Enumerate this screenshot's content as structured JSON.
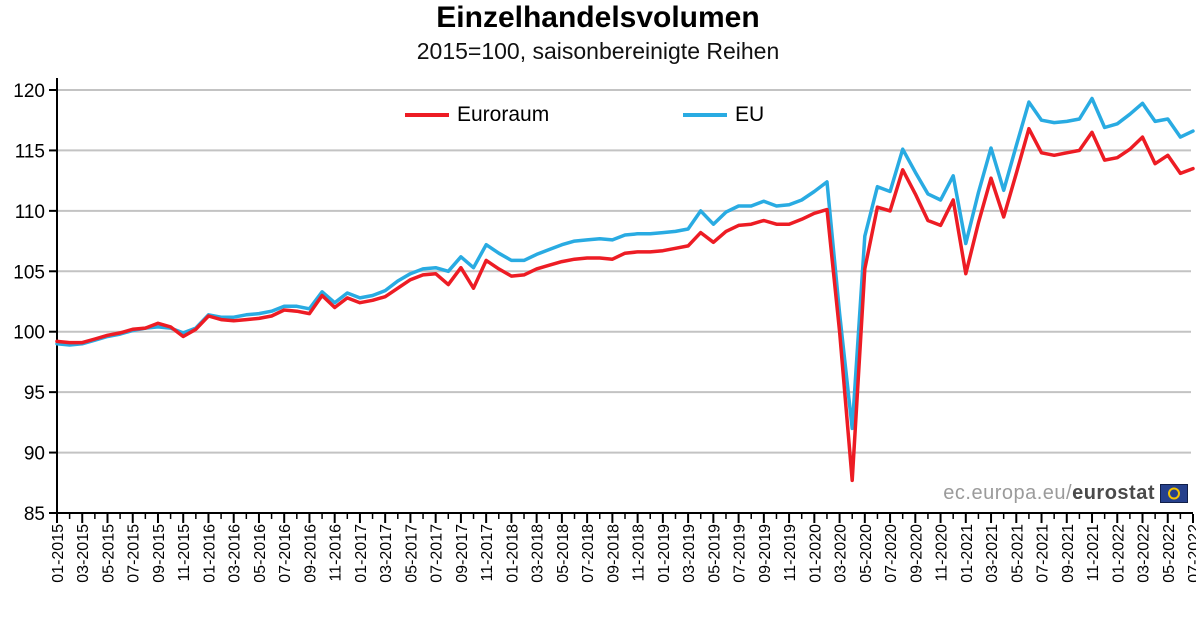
{
  "header": {
    "title": "Einzelhandelsvolumen",
    "subtitle": "2015=100, saisonbereinigte Reihen"
  },
  "watermark": {
    "prefix": "ec.europa.eu/",
    "bold": "eurostat"
  },
  "axis": {
    "yticks": [
      85,
      90,
      95,
      100,
      105,
      110,
      115,
      120
    ],
    "label_every_n_months": 2
  },
  "chart_data": {
    "type": "line",
    "title": "Einzelhandelsvolumen",
    "subtitle": "2015=100, saisonbereinigte Reihen",
    "ylim": [
      85,
      120
    ],
    "yticks": [
      85,
      90,
      95,
      100,
      105,
      110,
      115,
      120
    ],
    "grid": true,
    "legend_position": "top-center",
    "x": [
      "01-2015",
      "02-2015",
      "03-2015",
      "04-2015",
      "05-2015",
      "06-2015",
      "07-2015",
      "08-2015",
      "09-2015",
      "10-2015",
      "11-2015",
      "12-2015",
      "01-2016",
      "02-2016",
      "03-2016",
      "04-2016",
      "05-2016",
      "06-2016",
      "07-2016",
      "08-2016",
      "09-2016",
      "10-2016",
      "11-2016",
      "12-2016",
      "01-2017",
      "02-2017",
      "03-2017",
      "04-2017",
      "05-2017",
      "06-2017",
      "07-2017",
      "08-2017",
      "09-2017",
      "10-2017",
      "11-2017",
      "12-2017",
      "01-2018",
      "02-2018",
      "03-2018",
      "04-2018",
      "05-2018",
      "06-2018",
      "07-2018",
      "08-2018",
      "09-2018",
      "10-2018",
      "11-2018",
      "12-2018",
      "01-2019",
      "02-2019",
      "03-2019",
      "04-2019",
      "05-2019",
      "06-2019",
      "07-2019",
      "08-2019",
      "09-2019",
      "10-2019",
      "11-2019",
      "12-2019",
      "01-2020",
      "02-2020",
      "03-2020",
      "04-2020",
      "05-2020",
      "06-2020",
      "07-2020",
      "08-2020",
      "09-2020",
      "10-2020",
      "11-2020",
      "12-2020",
      "01-2021",
      "02-2021",
      "03-2021",
      "04-2021",
      "05-2021",
      "06-2021",
      "07-2021",
      "08-2021",
      "09-2021",
      "10-2021",
      "11-2021",
      "12-2021",
      "01-2022",
      "02-2022",
      "03-2022",
      "04-2022",
      "05-2022",
      "06-2022",
      "07-2022"
    ],
    "series": [
      {
        "name": "EU",
        "color": "#29abe2",
        "values": [
          99.0,
          98.9,
          99.0,
          99.3,
          99.6,
          99.8,
          100.1,
          100.3,
          100.4,
          100.3,
          99.9,
          100.3,
          101.4,
          101.2,
          101.2,
          101.4,
          101.5,
          101.7,
          102.1,
          102.1,
          101.9,
          103.3,
          102.4,
          103.2,
          102.8,
          103.0,
          103.4,
          104.2,
          104.8,
          105.2,
          105.3,
          105.0,
          106.2,
          105.3,
          107.2,
          106.5,
          105.9,
          105.9,
          106.4,
          106.8,
          107.2,
          107.5,
          107.6,
          107.7,
          107.6,
          108.0,
          108.1,
          108.1,
          108.2,
          108.3,
          108.5,
          110.0,
          108.9,
          109.9,
          110.4,
          110.4,
          110.8,
          110.4,
          110.5,
          110.9,
          111.6,
          112.4,
          101.5,
          92.0,
          107.9,
          112.0,
          111.6,
          115.1,
          113.2,
          111.4,
          110.9,
          112.9,
          107.3,
          111.5,
          115.2,
          111.7,
          115.4,
          119.0,
          117.5,
          117.3,
          117.4,
          117.6,
          119.3,
          116.9,
          117.2,
          118.0,
          118.9,
          117.4,
          117.6,
          116.1,
          116.6
        ]
      },
      {
        "name": "Euroraum",
        "color": "#ed1c24",
        "values": [
          99.2,
          99.1,
          99.1,
          99.4,
          99.7,
          99.9,
          100.2,
          100.3,
          100.7,
          100.4,
          99.6,
          100.2,
          101.3,
          101.0,
          100.9,
          101.0,
          101.1,
          101.3,
          101.8,
          101.7,
          101.5,
          103.0,
          102.0,
          102.8,
          102.4,
          102.6,
          102.9,
          103.6,
          104.3,
          104.7,
          104.8,
          103.9,
          105.3,
          103.6,
          105.9,
          105.2,
          104.6,
          104.7,
          105.2,
          105.5,
          105.8,
          106.0,
          106.1,
          106.1,
          106.0,
          106.5,
          106.6,
          106.6,
          106.7,
          106.9,
          107.1,
          108.2,
          107.4,
          108.3,
          108.8,
          108.9,
          109.2,
          108.9,
          108.9,
          109.3,
          109.8,
          110.1,
          100.0,
          87.7,
          105.2,
          110.3,
          110.0,
          113.4,
          111.4,
          109.2,
          108.8,
          110.9,
          104.8,
          109.0,
          112.7,
          109.5,
          113.1,
          116.8,
          114.8,
          114.6,
          114.8,
          115.0,
          116.5,
          114.2,
          114.4,
          115.1,
          116.1,
          113.9,
          114.6,
          113.1,
          113.5
        ]
      }
    ]
  }
}
